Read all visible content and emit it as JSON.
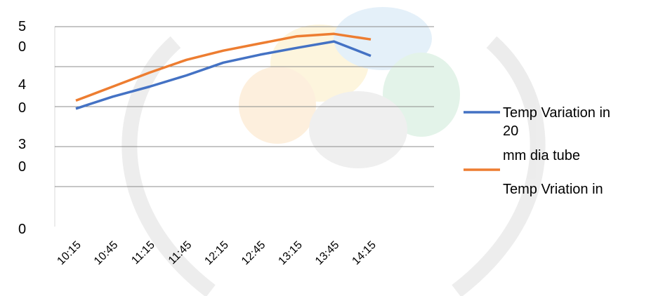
{
  "chart_data": {
    "type": "line",
    "title": "",
    "xlabel": "",
    "ylabel": "",
    "categories": [
      "10:15",
      "10:45",
      "11:15",
      "11:45",
      "12:15",
      "12:45",
      "13:15",
      "13:45",
      "14:15"
    ],
    "ylim": [
      0,
      50
    ],
    "y_ticks": [
      {
        "line1": "5",
        "line2": "0"
      },
      {
        "line1": "4",
        "line2": "0"
      },
      {
        "line1": "3",
        "line2": "0"
      },
      {
        "line1": "",
        "line2": ""
      },
      {
        "line1": "0",
        "line2": ""
      }
    ],
    "grid": true,
    "legend_position": "right",
    "series": [
      {
        "name_lines": [
          "Temp Variation in",
          "20",
          "mm dia tube"
        ],
        "color": "#4472C4",
        "values": [
          29.5,
          32.5,
          35.0,
          37.8,
          41.0,
          43.0,
          44.7,
          46.3,
          42.7
        ]
      },
      {
        "name_lines": [
          "Temp Vriation in"
        ],
        "color": "#ED7D31",
        "values": [
          31.5,
          35.0,
          38.5,
          41.7,
          44.0,
          45.8,
          47.6,
          48.2,
          46.8
        ]
      }
    ]
  }
}
